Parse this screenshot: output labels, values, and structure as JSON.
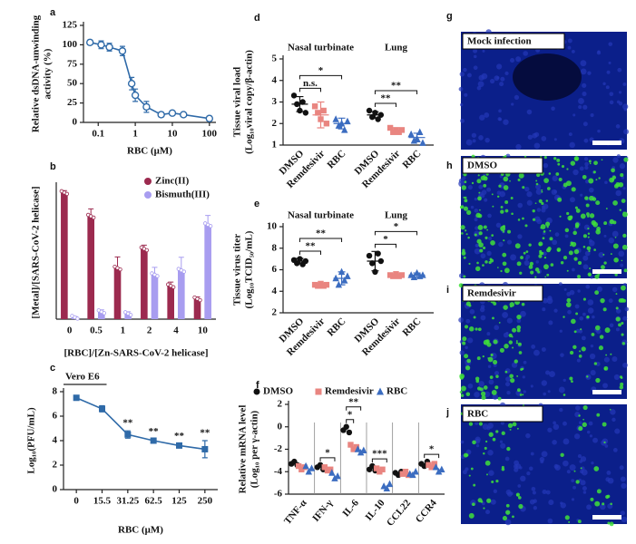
{
  "chart_data": [
    {
      "type": "line",
      "panel": "a",
      "ylabel": [
        "Relative dsDNA-unwinding",
        "activity (%)"
      ],
      "xlabel": "RBC (μM)",
      "x": [
        0.06,
        0.12,
        0.2,
        0.45,
        0.8,
        1,
        2,
        5,
        10,
        20,
        100
      ],
      "series": [
        {
          "color": "#2f6aa8",
          "marker": "open-circle",
          "values": [
            103,
            100,
            97,
            92,
            50,
            35,
            20,
            10,
            12,
            10,
            5
          ],
          "errors": [
            3,
            5,
            5,
            6,
            8,
            8,
            7,
            3,
            2,
            2,
            3
          ]
        }
      ],
      "xscale": "log",
      "xlim": [
        0.04,
        150
      ],
      "xticks": [
        0.1,
        1,
        10,
        100
      ],
      "ylim": [
        0,
        125
      ],
      "yticks": [
        0,
        25,
        50,
        75,
        100,
        125
      ]
    },
    {
      "type": "bar",
      "panel": "b",
      "ylabel": [
        "[Metal]/[SARS-CoV-2 helicase]"
      ],
      "xlabel": "[RBC]/[Zn-SARS-CoV-2 helicase]",
      "categories": [
        "0",
        "0.5",
        "1",
        "2",
        "4",
        "10"
      ],
      "series": [
        {
          "name": "Zinc(II)",
          "color": "#9c2a4f",
          "values": [
            3.42,
            2.78,
            1.38,
            1.9,
            0.9,
            0.55
          ],
          "errors": [
            0.05,
            0.2,
            0.3,
            0.1,
            0.1,
            0.05
          ]
        },
        {
          "name": "Bismuth(III)",
          "color": "#a89df0",
          "values": [
            0.05,
            0.2,
            0.15,
            1.2,
            1.32,
            2.55
          ],
          "errors": [
            0.02,
            0.05,
            0.05,
            0.2,
            0.35,
            0.25
          ]
        }
      ],
      "ylim": [
        0,
        3.6
      ],
      "legend": "upper right"
    },
    {
      "type": "line",
      "panel": "c",
      "ylabel": [
        "Log₁₀(PFU/mL)"
      ],
      "xlabel": "RBC (μM)",
      "condition": "Vero E6",
      "categories": [
        "0",
        "15.5",
        "31.25",
        "62.5",
        "125",
        "250"
      ],
      "series": [
        {
          "color": "#2f6aa8",
          "marker": "square",
          "values": [
            7.5,
            6.6,
            4.5,
            4.0,
            3.6,
            3.3
          ],
          "errors": [
            0.15,
            0.25,
            0.3,
            0.1,
            0.15,
            0.7
          ]
        }
      ],
      "annotations": [
        {
          "category": "31.25",
          "text": "**"
        },
        {
          "category": "62.5",
          "text": "**"
        },
        {
          "category": "125",
          "text": "**"
        },
        {
          "category": "250",
          "text": "**"
        }
      ],
      "ylim": [
        0,
        8
      ],
      "yticks": [
        0,
        2,
        4,
        6,
        8
      ]
    },
    {
      "type": "strip",
      "panel": "d",
      "ylabel": [
        "Tissue viral load",
        "(Log₁₀viral copy/β-actin)"
      ],
      "categories": [
        "Nasal turbinate",
        "Lung"
      ],
      "category_label_position": "top",
      "series_labels": "axis",
      "series": [
        {
          "name": "DMSO",
          "color": "#111111",
          "marker": "circle",
          "values": [
            [
              3.3,
              2.9,
              2.6,
              3.0,
              2.5
            ],
            [
              2.6,
              2.3,
              2.5,
              2.2,
              2.4
            ]
          ],
          "mean": [
            2.9,
            2.4
          ],
          "sd": [
            0.35,
            0.15
          ]
        },
        {
          "name": "Remdesivir",
          "color": "#e98580",
          "marker": "square",
          "values": [
            [
              2.8,
              2.5,
              2.2,
              2.6,
              2.0
            ],
            [
              1.8,
              1.6,
              1.7,
              1.6,
              1.7
            ]
          ],
          "mean": [
            2.4,
            1.7
          ],
          "sd": [
            0.6,
            0.1
          ]
        },
        {
          "name": "RBC",
          "color": "#3b6cc0",
          "marker": "triangle",
          "values": [
            [
              2.2,
              1.9,
              2.0,
              1.7,
              2.1
            ],
            [
              1.5,
              1.2,
              1.3,
              1.6,
              1.1
            ]
          ],
          "mean": [
            2.0,
            1.35
          ],
          "sd": [
            0.25,
            0.2
          ]
        }
      ],
      "comparisons": [
        {
          "category": "Nasal turbinate",
          "from": "DMSO",
          "to": "Remdesivir",
          "label": "n.s."
        },
        {
          "category": "Nasal turbinate",
          "from": "DMSO",
          "to": "RBC",
          "label": "*"
        },
        {
          "category": "Lung",
          "from": "DMSO",
          "to": "Remdesivir",
          "label": "**"
        },
        {
          "category": "Lung",
          "from": "DMSO",
          "to": "RBC",
          "label": "**"
        }
      ],
      "ylim": [
        1,
        5
      ],
      "yticks": [
        1,
        2,
        3,
        4,
        5
      ]
    },
    {
      "type": "strip",
      "panel": "e",
      "ylabel": [
        "Tissue virus titer",
        "(Log₁₀TCID₅₀/mL)"
      ],
      "categories": [
        "Nasal turbinate",
        "Lung"
      ],
      "category_label_position": "top",
      "series_labels": "axis",
      "series": [
        {
          "name": "DMSO",
          "color": "#111111",
          "marker": "circle",
          "values": [
            [
              6.9,
              6.6,
              7.0,
              6.5,
              6.8
            ],
            [
              7.3,
              6.6,
              5.8,
              7.5,
              6.8
            ]
          ],
          "mean": [
            6.8,
            6.8
          ],
          "sd": [
            0.25,
            0.9
          ]
        },
        {
          "name": "Remdesivir",
          "color": "#e98580",
          "marker": "square",
          "values": [
            [
              4.6,
              4.5,
              4.7,
              4.5,
              4.6
            ],
            [
              5.5,
              5.4,
              5.6,
              5.4,
              5.5
            ]
          ],
          "mean": [
            4.6,
            5.5
          ],
          "sd": [
            0.15,
            0.1
          ]
        },
        {
          "name": "RBC",
          "color": "#3b6cc0",
          "marker": "triangle",
          "values": [
            [
              5.2,
              4.6,
              5.8,
              5.0,
              5.4
            ],
            [
              5.5,
              5.3,
              5.7,
              5.4,
              5.5
            ]
          ],
          "mean": [
            5.2,
            5.5
          ],
          "sd": [
            0.6,
            0.2
          ]
        }
      ],
      "comparisons": [
        {
          "category": "Nasal turbinate",
          "from": "DMSO",
          "to": "Remdesivir",
          "label": "**"
        },
        {
          "category": "Nasal turbinate",
          "from": "DMSO",
          "to": "RBC",
          "label": "**"
        },
        {
          "category": "Lung",
          "from": "DMSO",
          "to": "Remdesivir",
          "label": "*"
        },
        {
          "category": "Lung",
          "from": "DMSO",
          "to": "RBC",
          "label": "*"
        }
      ],
      "ylim": [
        2,
        10
      ],
      "yticks": [
        2,
        4,
        6,
        8,
        10
      ]
    },
    {
      "type": "strip",
      "panel": "f",
      "ylabel": [
        "Relative mRNA level",
        "(Log₁₀ per γ-actin)"
      ],
      "categories": [
        "TNF-α",
        "IFN-γ",
        "IL-6",
        "IL-10",
        "CCL22",
        "CCR4"
      ],
      "category_label_position": "bottom",
      "series_labels": "legend",
      "series": [
        {
          "name": "DMSO",
          "color": "#111111",
          "marker": "circle",
          "values": [
            [
              -3.3,
              -3.1,
              -3.4
            ],
            [
              -3.6,
              -3.4,
              -3.8
            ],
            [
              -0.3,
              0.0,
              -0.5
            ],
            [
              -3.8,
              -3.5,
              -3.9
            ],
            [
              -4.1,
              -4.3,
              -4.0
            ],
            [
              -3.3,
              -3.5,
              -3.1
            ]
          ]
        },
        {
          "name": "Remdesivir",
          "color": "#e98580",
          "marker": "square",
          "values": [
            [
              -3.5,
              -3.8,
              -3.6
            ],
            [
              -3.6,
              -3.9,
              -3.8
            ],
            [
              -1.6,
              -2.0,
              -1.8
            ],
            [
              -3.7,
              -4.0,
              -3.8
            ],
            [
              -4.2,
              -4.0,
              -4.3
            ],
            [
              -3.4,
              -3.6,
              -3.3
            ]
          ]
        },
        {
          "name": "RBC",
          "color": "#3b6cc0",
          "marker": "triangle",
          "values": [
            [
              -3.5,
              -4.0,
              -3.7
            ],
            [
              -4.1,
              -4.6,
              -4.4
            ],
            [
              -2.0,
              -2.3,
              -2.1
            ],
            [
              -5.3,
              -5.5,
              -5.1
            ],
            [
              -4.2,
              -4.3,
              -4.0
            ],
            [
              -3.6,
              -4.0,
              -3.8
            ]
          ]
        }
      ],
      "comparisons": [
        {
          "category": "IFN-γ",
          "from": "DMSO",
          "to": "RBC",
          "label": "*"
        },
        {
          "category": "IL-6",
          "from": "DMSO",
          "to": "Remdesivir",
          "label": "*"
        },
        {
          "category": "IL-6",
          "from": "DMSO",
          "to": "RBC",
          "label": "**"
        },
        {
          "category": "IL-10",
          "from": "DMSO",
          "to": "RBC",
          "label": "***"
        },
        {
          "category": "CCR4",
          "from": "DMSO",
          "to": "RBC",
          "label": "*"
        }
      ],
      "legend": "top",
      "ylim": [
        -6,
        2
      ],
      "yticks": [
        -6,
        -4,
        -2,
        0,
        2
      ]
    }
  ],
  "images": [
    {
      "panel": "g",
      "label": "Mock infection"
    },
    {
      "panel": "h",
      "label": "DMSO"
    },
    {
      "panel": "i",
      "label": "Remdesivir"
    },
    {
      "panel": "j",
      "label": "RBC"
    }
  ]
}
